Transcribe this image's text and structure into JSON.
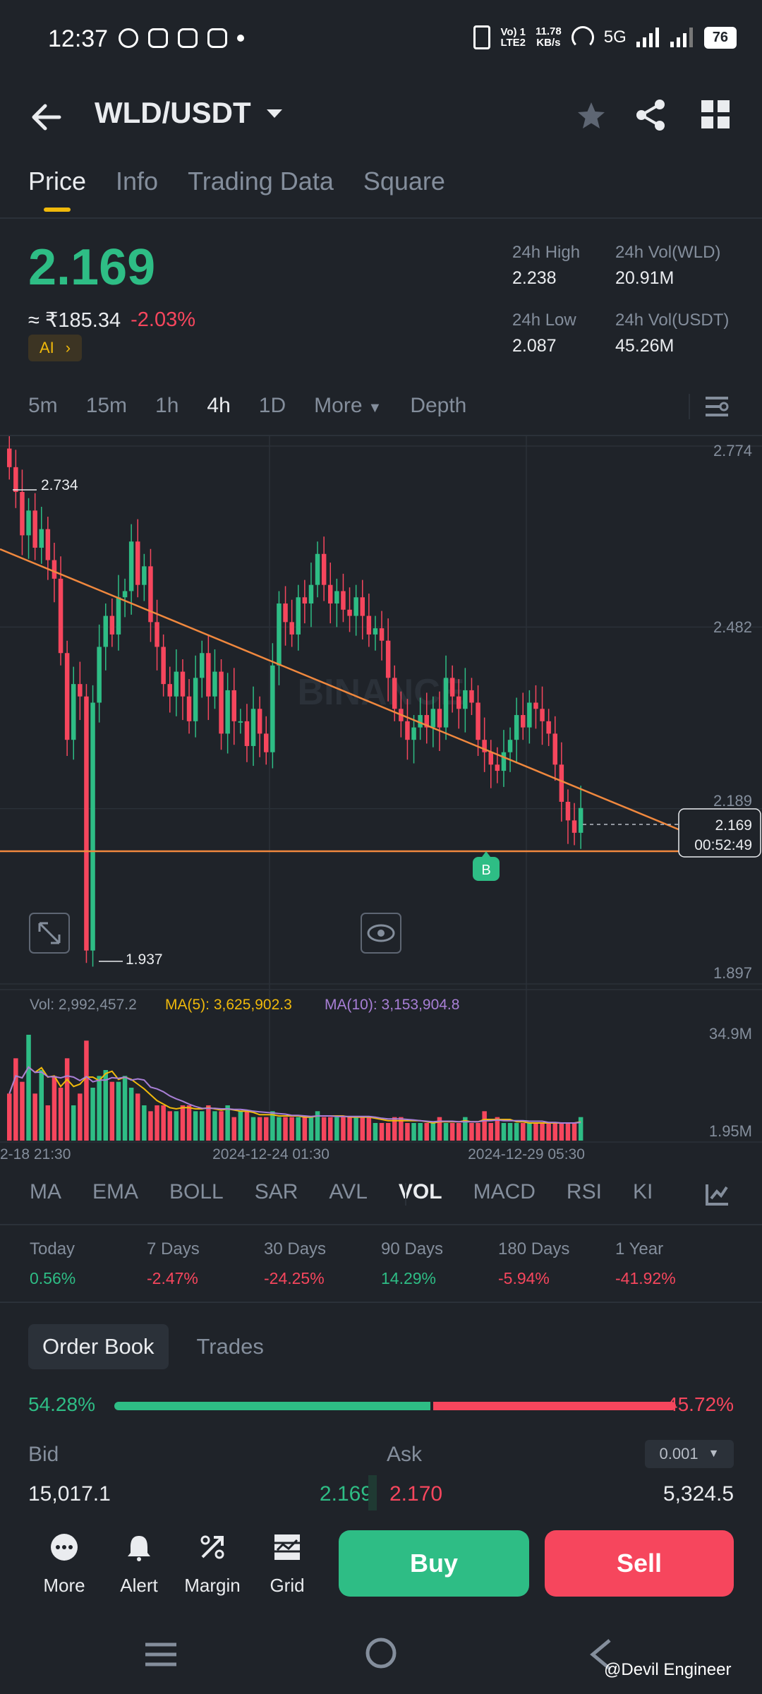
{
  "status_bar": {
    "time": "12:37",
    "network": "5G",
    "speed": "11.78\nKB/s",
    "carrier": "Vo) 1\nLTE2",
    "battery": "76"
  },
  "header": {
    "pair": "WLD/USDT"
  },
  "tabs": [
    {
      "label": "Price"
    },
    {
      "label": "Info"
    },
    {
      "label": "Trading Data"
    },
    {
      "label": "Square"
    }
  ],
  "price": {
    "last": "2.169",
    "fiat": "≈ ₹185.34",
    "change": "-2.03%",
    "ai_label": "AI",
    "high_label": "24h High",
    "high": "2.238",
    "low_label": "24h Low",
    "low": "2.087",
    "vol_wld_label": "24h Vol(WLD)",
    "vol_wld": "20.91M",
    "vol_usdt_label": "24h Vol(USDT)",
    "vol_usdt": "45.26M"
  },
  "intervals": [
    {
      "label": "5m"
    },
    {
      "label": "15m"
    },
    {
      "label": "1h"
    },
    {
      "label": "4h"
    },
    {
      "label": "1D"
    },
    {
      "label": "More"
    },
    {
      "label": "Depth"
    }
  ],
  "chart_data": {
    "type": "candlestick",
    "watermark": "BINANCE",
    "y_ticks": [
      "2.774",
      "2.482",
      "2.189",
      "1.897"
    ],
    "ylim": [
      1.897,
      2.774
    ],
    "high_marker": "2.734",
    "low_marker": "1.937",
    "current_price": "2.169",
    "countdown": "00:52:49",
    "trade_marker": "B",
    "x_ticks": [
      "2-18 21:30",
      "2024-12-24 01:30",
      "2024-12-29 05:30"
    ],
    "volume": {
      "vol_label": "Vol: 2,992,457.2",
      "ma5_label": "MA(5): 3,625,902.3",
      "ma10_label": "MA(10): 3,153,904.8",
      "y_ticks": [
        "34.9M",
        "1.95M"
      ],
      "ma5_color": "#f0b90b",
      "ma10_color": "#a87fd6"
    },
    "closes": [
      2.74,
      2.7,
      2.63,
      2.67,
      2.61,
      2.64,
      2.59,
      2.56,
      2.44,
      2.3,
      2.39,
      2.37,
      1.96,
      2.36,
      2.45,
      2.5,
      2.47,
      2.53,
      2.54,
      2.62,
      2.55,
      2.58,
      2.49,
      2.45,
      2.39,
      2.37,
      2.41,
      2.37,
      2.33,
      2.4,
      2.44,
      2.37,
      2.41,
      2.31,
      2.38,
      2.33,
      2.33,
      2.29,
      2.35,
      2.31,
      2.28,
      2.42,
      2.52,
      2.49,
      2.47,
      2.53,
      2.52,
      2.55,
      2.6,
      2.55,
      2.52,
      2.54,
      2.51,
      2.5,
      2.53,
      2.5,
      2.47,
      2.48,
      2.46,
      2.4,
      2.35,
      2.33,
      2.3,
      2.32,
      2.34,
      2.32,
      2.35,
      2.32,
      2.4,
      2.37,
      2.35,
      2.38,
      2.36,
      2.3,
      2.28,
      2.26,
      2.25,
      2.28,
      2.3,
      2.34,
      2.32,
      2.36,
      2.35,
      2.33,
      2.31,
      2.26,
      2.2,
      2.17,
      2.15,
      2.19
    ],
    "volumes": [
      8,
      14,
      10,
      18,
      8,
      12,
      6,
      11,
      9,
      14,
      6,
      8,
      17,
      9,
      11,
      12,
      10,
      10,
      11,
      9,
      8,
      6,
      5,
      6,
      6,
      5,
      5,
      6,
      6,
      5,
      5,
      6,
      5,
      5,
      6,
      4,
      5,
      5,
      4,
      4,
      4,
      5,
      4,
      4,
      4,
      4,
      4,
      4,
      5,
      4,
      4,
      4,
      4,
      4,
      4,
      4,
      4,
      3,
      3,
      3,
      4,
      4,
      3,
      3,
      3,
      3,
      3,
      4,
      3,
      3,
      3,
      4,
      3,
      3,
      5,
      3,
      4,
      3,
      3,
      3,
      3,
      3,
      3,
      3,
      3,
      3,
      3,
      3,
      3,
      4
    ]
  },
  "indicators": [
    {
      "label": "MA"
    },
    {
      "label": "EMA"
    },
    {
      "label": "BOLL"
    },
    {
      "label": "SAR"
    },
    {
      "label": "AVL"
    },
    {
      "label": "VOL"
    },
    {
      "label": "MACD"
    },
    {
      "label": "RSI"
    },
    {
      "label": "KI"
    }
  ],
  "performance": [
    {
      "label": "Today",
      "value": "0.56%",
      "dir": "up"
    },
    {
      "label": "7 Days",
      "value": "-2.47%",
      "dir": "down"
    },
    {
      "label": "30 Days",
      "value": "-24.25%",
      "dir": "down"
    },
    {
      "label": "90 Days",
      "value": "14.29%",
      "dir": "up"
    },
    {
      "label": "180 Days",
      "value": "-5.94%",
      "dir": "down"
    },
    {
      "label": "1 Year",
      "value": "-41.92%",
      "dir": "down"
    }
  ],
  "orderbook": {
    "tab1": "Order Book",
    "tab2": "Trades",
    "bid_pct": "54.28%",
    "ask_pct": "45.72%",
    "bid_label": "Bid",
    "ask_label": "Ask",
    "precision": "0.001",
    "bid_qty": "15,017.1",
    "bid_price": "2.169",
    "ask_price": "2.170",
    "ask_qty": "5,324.5"
  },
  "bottom_nav": {
    "more": "More",
    "alert": "Alert",
    "margin": "Margin",
    "grid": "Grid",
    "buy": "Buy",
    "sell": "Sell"
  },
  "watermark_credit": "@Devil Engineer",
  "colors": {
    "up": "#2ebd85",
    "down": "#f6465d",
    "accent": "#f0b90b",
    "bg": "#1f2329"
  }
}
